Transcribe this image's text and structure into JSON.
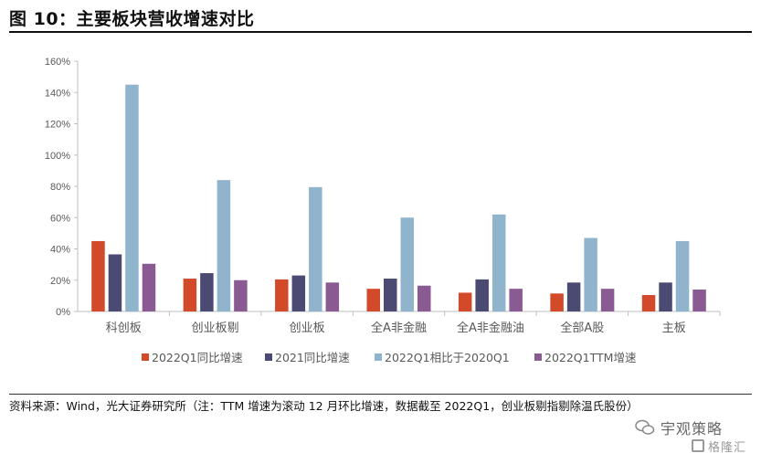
{
  "header": {
    "title": "图 10：主要板块营收增速对比"
  },
  "footer": {
    "source": "资料来源：Wind，光大证券研究所（注：TTM 增速为滚动 12 月环比增速，数据截至 2022Q1，创业板剔指剔除温氏股份）",
    "watermark_name": "宇观策略",
    "watermark_sub": "格隆汇"
  },
  "colors": {
    "s1": "#D24A2A",
    "s2": "#4A4A72",
    "s3": "#8FB4CC",
    "s4": "#8A5A93",
    "axis": "#BFBFBF",
    "text": "#595959"
  },
  "chart_data": {
    "type": "bar",
    "title": "",
    "xlabel": "",
    "ylabel": "",
    "ylim": [
      0,
      160
    ],
    "yticks": [
      "0%",
      "20%",
      "40%",
      "60%",
      "80%",
      "100%",
      "120%",
      "140%",
      "160%"
    ],
    "grid": false,
    "legend_position": "bottom",
    "categories": [
      "科创板",
      "创业板剔",
      "创业板",
      "全A非金融",
      "全A非金融油",
      "全部A股",
      "主板"
    ],
    "series": [
      {
        "name": "2022Q1同比增速",
        "values": [
          45,
          21,
          20.5,
          14.5,
          12,
          11.5,
          10.5
        ]
      },
      {
        "name": "2021同比增速",
        "values": [
          36.5,
          24.5,
          23,
          21,
          20.5,
          18.5,
          18.5
        ]
      },
      {
        "name": "2022Q1相比于2020Q1",
        "values": [
          145,
          84,
          79.5,
          60,
          62,
          47,
          45
        ]
      },
      {
        "name": "2022Q1TTM增速",
        "values": [
          30.5,
          20,
          18.5,
          16.5,
          14.5,
          14.5,
          14
        ]
      }
    ]
  }
}
